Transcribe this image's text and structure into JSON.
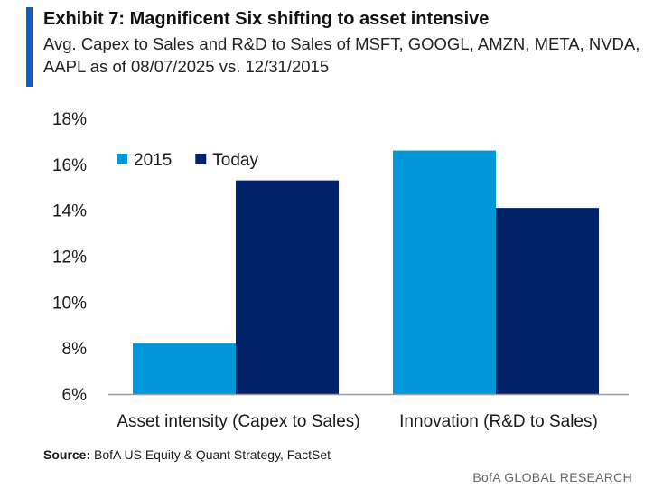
{
  "header": {
    "title": "Exhibit 7: Magnificent Six shifting to asset intensive",
    "subtitle": "Avg. Capex to Sales and R&D to Sales of MSFT, GOOGL, AMZN, META, NVDA, AAPL as of 08/07/2025 vs. 12/31/2015"
  },
  "footer": {
    "source_label": "Source:",
    "source_text": "BofA US Equity & Quant Strategy, FactSet",
    "brand": "BofA GLOBAL RESEARCH"
  },
  "colors": {
    "series_2015": "#0097d9",
    "series_today": "#012169",
    "accent": "#0f5fc4",
    "axis": "#999999"
  },
  "chart_data": {
    "type": "bar",
    "title": "Exhibit 7: Magnificent Six shifting to asset intensive",
    "categories": [
      "Asset intensity (Capex to Sales)",
      "Innovation (R&D to Sales)"
    ],
    "series": [
      {
        "name": "2015",
        "values": [
          8.2,
          16.6
        ]
      },
      {
        "name": "Today",
        "values": [
          15.3,
          14.1
        ]
      }
    ],
    "ylim": [
      6,
      18
    ],
    "yticks": [
      6,
      8,
      10,
      12,
      14,
      16,
      18
    ],
    "ytick_labels": [
      "6%",
      "8%",
      "10%",
      "12%",
      "14%",
      "16%",
      "18%"
    ],
    "xlabel": "",
    "ylabel": "",
    "legend_position": "top-left",
    "grid": false
  }
}
